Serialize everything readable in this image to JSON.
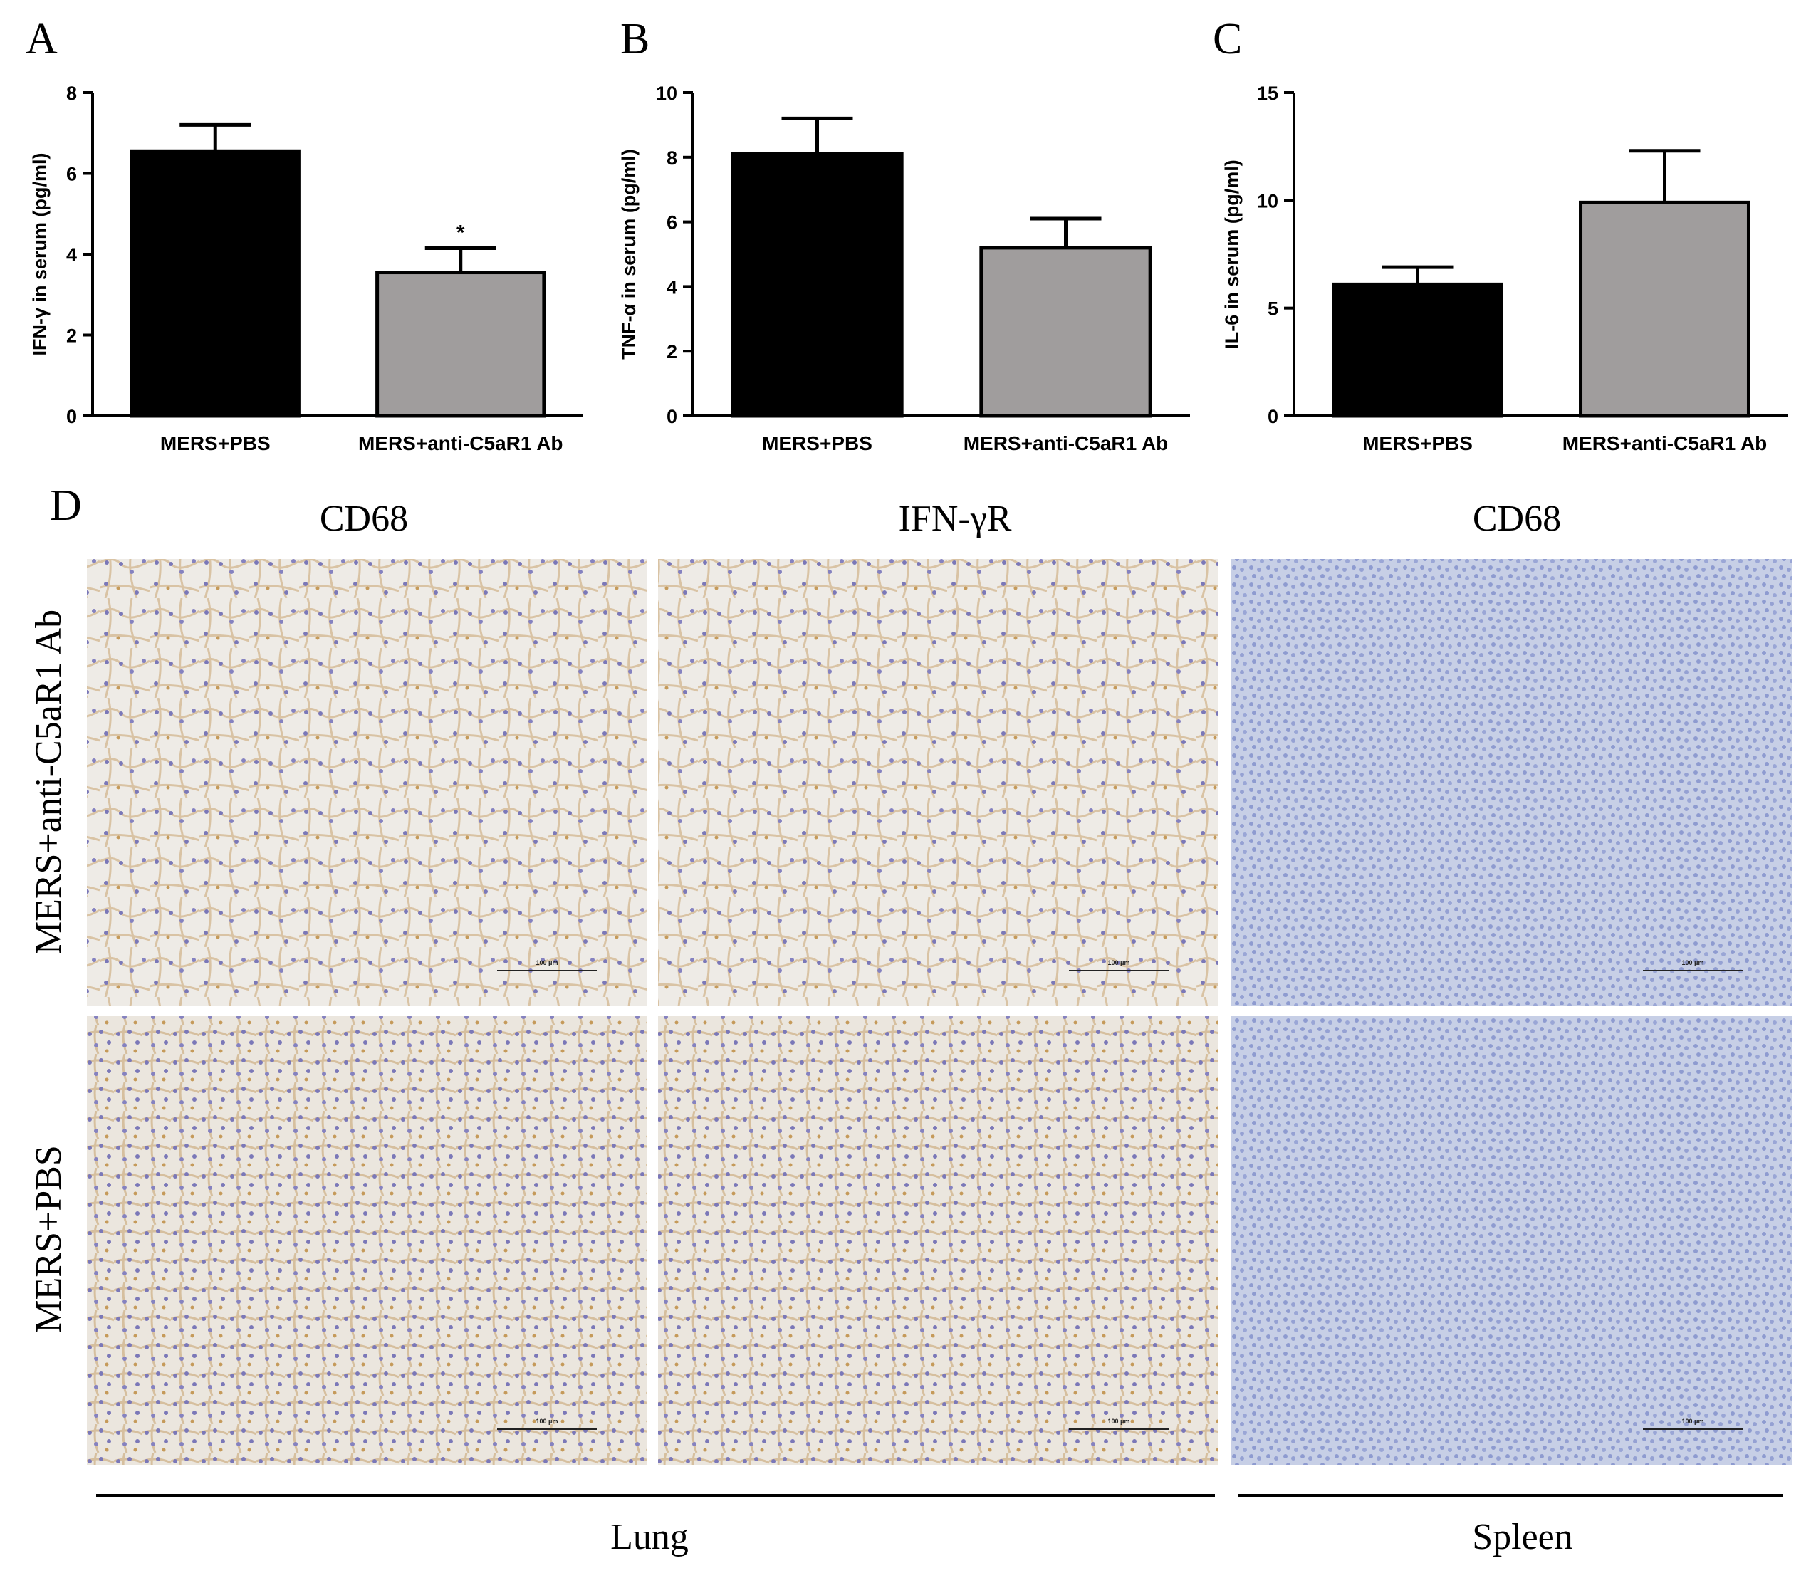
{
  "chart_data": [
    {
      "type": "bar",
      "panel": "A",
      "ylabel": "IFN-γ in serum (pg/ml)",
      "categories": [
        "MERS+PBS",
        "MERS+anti-C5aR1 Ab"
      ],
      "values": [
        6.55,
        3.55
      ],
      "errors": [
        0.65,
        0.6
      ],
      "colors": [
        "#000000",
        "#a09d9d"
      ],
      "annotations": [
        null,
        "*"
      ],
      "ylim": [
        0,
        8
      ],
      "yticks": [
        0,
        2,
        4,
        6,
        8
      ]
    },
    {
      "type": "bar",
      "panel": "B",
      "ylabel": "TNF-α in serum (pg/ml)",
      "categories": [
        "MERS+PBS",
        "MERS+anti-C5aR1 Ab"
      ],
      "values": [
        8.1,
        5.2
      ],
      "errors": [
        1.1,
        0.9
      ],
      "colors": [
        "#000000",
        "#a09d9d"
      ],
      "ylim": [
        0,
        10
      ],
      "yticks": [
        0,
        2,
        4,
        6,
        8,
        10
      ]
    },
    {
      "type": "bar",
      "panel": "C",
      "ylabel": "IL-6 in serum (pg/ml)",
      "categories": [
        "MERS+PBS",
        "MERS+anti-C5aR1 Ab"
      ],
      "values": [
        6.1,
        9.9
      ],
      "errors": [
        0.8,
        2.4
      ],
      "colors": [
        "#000000",
        "#a09d9d"
      ],
      "ylim": [
        0,
        15
      ],
      "yticks": [
        0,
        5,
        10,
        15
      ]
    }
  ],
  "panel_d": {
    "label": "D",
    "columns": [
      "CD68",
      "IFN-γR",
      "CD68"
    ],
    "rows": [
      "MERS+anti-C5aR1 Ab",
      "MERS+PBS"
    ],
    "scale_bar": "100 μm",
    "groups": [
      "Lung",
      "Spleen"
    ]
  }
}
